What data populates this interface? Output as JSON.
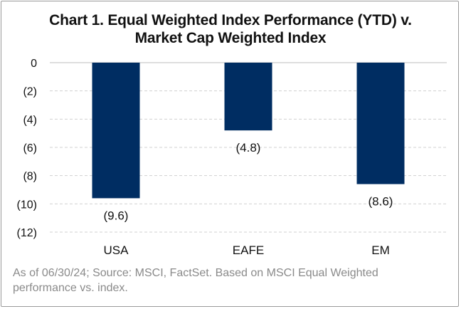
{
  "chart_data": {
    "type": "bar",
    "title_lines": [
      "Chart 1. Equal Weighted Index Performance (YTD) v.",
      "Market Cap Weighted Index"
    ],
    "categories": [
      "USA",
      "EAFE",
      "EM"
    ],
    "values": [
      -9.6,
      -4.8,
      -8.6
    ],
    "data_labels": [
      "(9.6)",
      "(4.8)",
      "(8.6)"
    ],
    "yticks": [
      0,
      -2,
      -4,
      -6,
      -8,
      -10,
      -12
    ],
    "ytick_labels": [
      "0",
      "(2)",
      "(4)",
      "(6)",
      "(8)",
      "(10)",
      "(12)"
    ],
    "ylim": [
      -12,
      0
    ],
    "grid": true,
    "bar_color": "#002d62",
    "xlabel": "",
    "ylabel": ""
  },
  "footnote": "As of 06/30/24; Source: MSCI, FactSet.  Based on MSCI Equal Weighted performance vs. index."
}
